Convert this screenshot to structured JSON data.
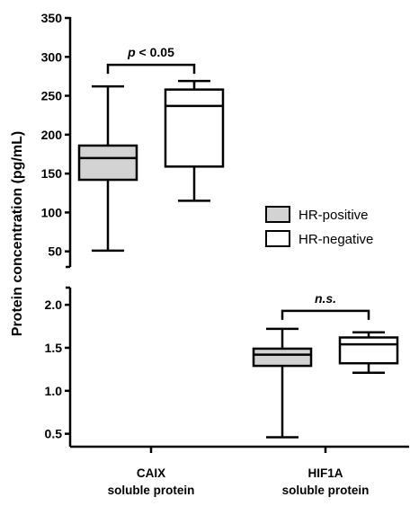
{
  "chart_data": {
    "type": "box",
    "ylabel": "Protein concentration (pg/mL)",
    "y_axis_break": true,
    "upper_panel": {
      "ylim": [
        30,
        350
      ],
      "ticks": [
        "50",
        "100",
        "150",
        "200",
        "250",
        "300",
        "350"
      ]
    },
    "lower_panel": {
      "ylim": [
        0.35,
        2.2
      ],
      "ticks": [
        "0.5",
        "1.0",
        "1.5",
        "2.0"
      ]
    },
    "categories": [
      {
        "line1": "CAIX",
        "line2": "soluble protein",
        "panel": "upper"
      },
      {
        "line1": "HIF1A",
        "line2": "soluble protein",
        "panel": "lower"
      }
    ],
    "series": [
      {
        "name": "HR-positive",
        "fill": "#d3d3d3",
        "boxes": [
          {
            "min": 51,
            "q1": 142,
            "median": 170,
            "q3": 186,
            "max": 262
          },
          {
            "min": 0.46,
            "q1": 1.29,
            "median": 1.42,
            "q3": 1.49,
            "max": 1.72
          }
        ]
      },
      {
        "name": "HR-negative",
        "fill": "#ffffff",
        "boxes": [
          {
            "min": 115,
            "q1": 159,
            "median": 237,
            "q3": 258,
            "max": 269
          },
          {
            "min": 1.21,
            "q1": 1.32,
            "median": 1.54,
            "q3": 1.62,
            "max": 1.68
          }
        ]
      }
    ],
    "annotations": [
      {
        "category": 0,
        "text_prefix": "p",
        "text_rest": " < 0.05",
        "italic_prefix": true
      },
      {
        "category": 1,
        "text_prefix": "n.s.",
        "text_rest": "",
        "italic_prefix": true
      }
    ],
    "legend": {
      "placement": "right"
    },
    "grid": false
  }
}
